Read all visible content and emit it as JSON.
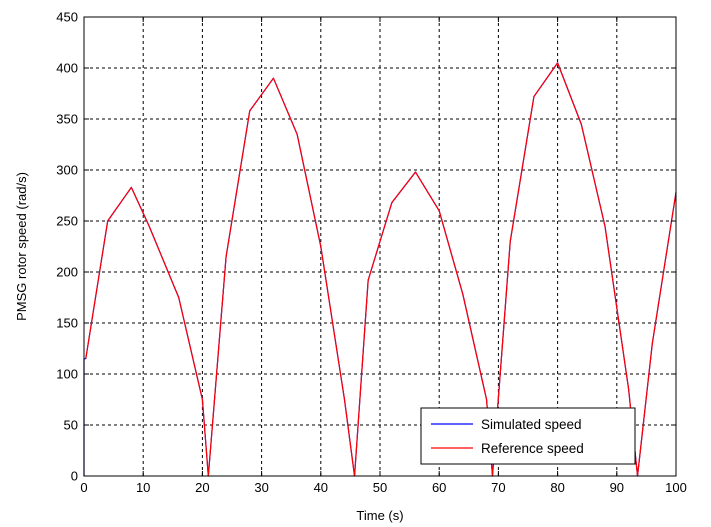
{
  "chart_data": {
    "type": "line",
    "xlabel": "Time (s)",
    "ylabel": "PMSG rotor speed (rad/s)",
    "xlim": [
      0,
      100
    ],
    "ylim": [
      0,
      450
    ],
    "xticks": [
      0,
      10,
      20,
      30,
      40,
      50,
      60,
      70,
      80,
      90,
      100
    ],
    "yticks": [
      0,
      50,
      100,
      150,
      200,
      250,
      300,
      350,
      400,
      450
    ],
    "grid": true,
    "legend_position": "bottom-right",
    "series": [
      {
        "name": "Simulated speed",
        "color": "#0000ff",
        "x": [
          0,
          0,
          0.3,
          4,
          8,
          11,
          16,
          20,
          21,
          24,
          28,
          32,
          36,
          40,
          44,
          45.7,
          48,
          52,
          56,
          60,
          64,
          68,
          69,
          72,
          76,
          80,
          84,
          88,
          92,
          93.5,
          96,
          100
        ],
        "y": [
          0,
          115,
          115,
          250,
          283,
          245,
          175,
          75,
          0,
          215,
          358,
          390,
          335,
          225,
          75,
          0,
          192,
          268,
          298,
          260,
          178,
          75,
          0,
          230,
          372,
          405,
          345,
          245,
          85,
          0,
          130,
          278
        ]
      },
      {
        "name": "Reference speed",
        "color": "#ff0000",
        "x": [
          0.3,
          4,
          8,
          11,
          16,
          20,
          21,
          24,
          28,
          32,
          36,
          40,
          44,
          45.7,
          48,
          52,
          56,
          60,
          64,
          68,
          69,
          72,
          76,
          80,
          84,
          88,
          92,
          93.5,
          96,
          100
        ],
        "y": [
          115,
          250,
          283,
          245,
          175,
          75,
          0,
          215,
          358,
          390,
          335,
          225,
          75,
          0,
          192,
          268,
          298,
          260,
          178,
          75,
          0,
          230,
          372,
          405,
          345,
          245,
          85,
          0,
          130,
          278
        ]
      }
    ]
  }
}
